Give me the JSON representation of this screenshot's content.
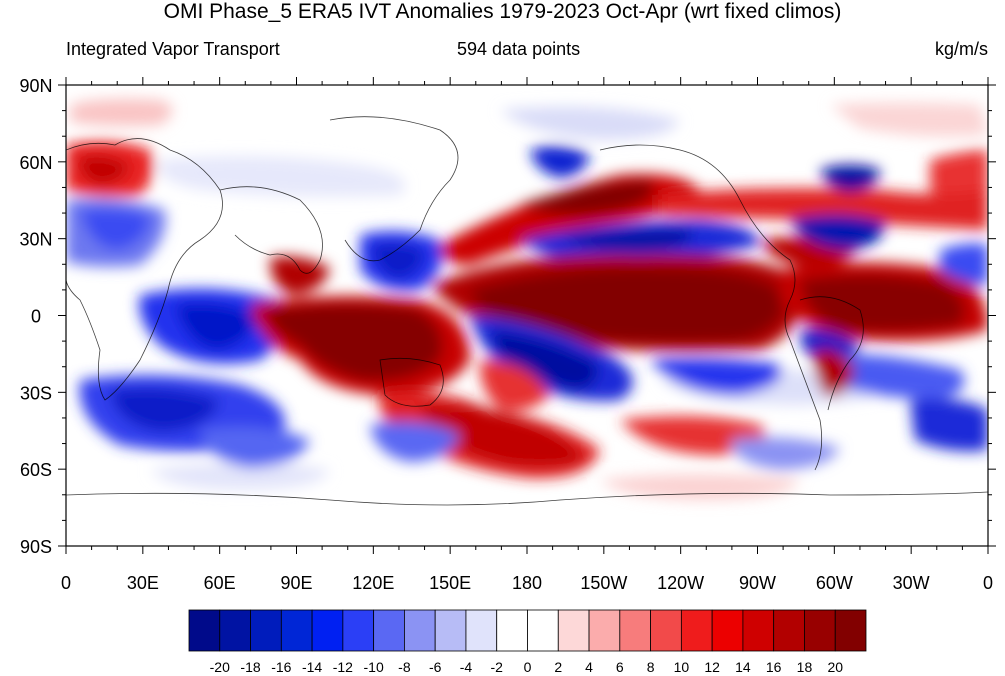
{
  "title": "OMI Phase_5 ERA5 IVT Anomalies 1979-2023 Oct-Apr (wrt fixed climos)",
  "left_string": "Integrated Vapor Transport",
  "center_string": "594 data points",
  "right_string": "kg/m/s",
  "lat_labels": [
    {
      "value": 90,
      "label": "90N"
    },
    {
      "value": 60,
      "label": "60N"
    },
    {
      "value": 30,
      "label": "30N"
    },
    {
      "value": 0,
      "label": "0"
    },
    {
      "value": -30,
      "label": "30S"
    },
    {
      "value": -60,
      "label": "60S"
    },
    {
      "value": -90,
      "label": "90S"
    }
  ],
  "lon_labels": [
    {
      "value": 0,
      "label": "0"
    },
    {
      "value": 30,
      "label": "30E"
    },
    {
      "value": 60,
      "label": "60E"
    },
    {
      "value": 90,
      "label": "90E"
    },
    {
      "value": 120,
      "label": "120E"
    },
    {
      "value": 150,
      "label": "150E"
    },
    {
      "value": 180,
      "label": "180"
    },
    {
      "value": 210,
      "label": "150W"
    },
    {
      "value": 240,
      "label": "120W"
    },
    {
      "value": 270,
      "label": "90W"
    },
    {
      "value": 300,
      "label": "60W"
    },
    {
      "value": 330,
      "label": "30W"
    },
    {
      "value": 360,
      "label": "0"
    }
  ],
  "colorbar": {
    "levels": [
      -20,
      -18,
      -16,
      -14,
      -12,
      -10,
      -8,
      -6,
      -4,
      -2,
      0,
      2,
      4,
      6,
      8,
      10,
      12,
      14,
      16,
      18,
      20
    ],
    "colors": [
      "#000a8a",
      "#0013a3",
      "#001cbc",
      "#0026d6",
      "#0020f2",
      "#2b3ff6",
      "#5a68f3",
      "#8b93f3",
      "#b7bcf6",
      "#e0e3fb",
      "#ffffff",
      "#ffffff",
      "#fdd8d8",
      "#fbacac",
      "#f77c7c",
      "#f24a4a",
      "#ef1c1c",
      "#ec0000",
      "#cf0000",
      "#b20000",
      "#980000",
      "#820000"
    ]
  },
  "anomaly_features": [
    {
      "name": "tropical-pacific-positive",
      "lon": 205,
      "lat": 5,
      "value": 22
    },
    {
      "name": "maritime-continent-positive",
      "lon": 120,
      "lat": -10,
      "value": 22
    },
    {
      "name": "atlantic-equatorial-positive",
      "lon": 325,
      "lat": 5,
      "value": 20
    },
    {
      "name": "north-pacific-positive-band",
      "lon": 200,
      "lat": 40,
      "value": 18
    },
    {
      "name": "subtropical-north-pacific-negative",
      "lon": 220,
      "lat": 28,
      "value": -18
    },
    {
      "name": "south-pacific-negative-band",
      "lon": 200,
      "lat": -18,
      "value": -18
    },
    {
      "name": "indian-ocean-negative",
      "lon": 70,
      "lat": -8,
      "value": -16
    },
    {
      "name": "southern-ocean-negative",
      "lon": 40,
      "lat": -40,
      "value": -14
    },
    {
      "name": "south-pacific-positive",
      "lon": 170,
      "lat": -45,
      "value": 14
    },
    {
      "name": "north-atlantic-negative",
      "lon": 320,
      "lat": 30,
      "value": -16
    },
    {
      "name": "north-atlantic-positive",
      "lon": 340,
      "lat": 52,
      "value": 14
    },
    {
      "name": "europe-positive",
      "lon": 15,
      "lat": 55,
      "value": 14
    }
  ]
}
